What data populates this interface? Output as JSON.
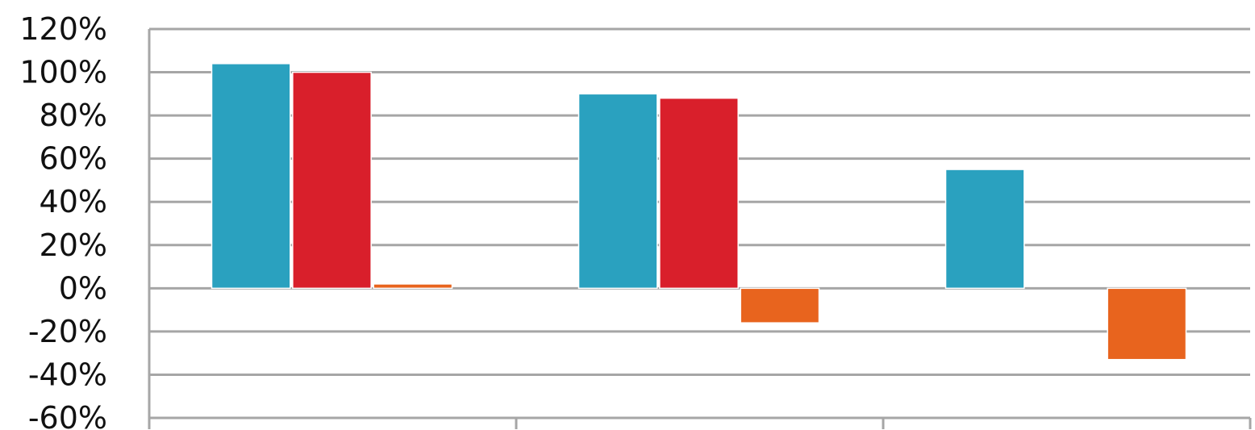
{
  "chart_data": {
    "type": "bar",
    "categories": [
      "",
      "",
      ""
    ],
    "series": [
      {
        "values": [
          104,
          90,
          55
        ],
        "color": "#2aa1bf"
      },
      {
        "values": [
          100,
          88,
          null
        ],
        "color": "#d91f2b"
      },
      {
        "values": [
          2,
          -16,
          -33
        ],
        "color": "#e8641e"
      }
    ],
    "y_ticks": [
      "120%",
      "100%",
      "80%",
      "60%",
      "40%",
      "20%",
      "0%",
      "-20%",
      "-40%",
      "-60%"
    ],
    "ylim": [
      -60,
      120
    ],
    "grid": true,
    "legend": "none",
    "title": "",
    "xlabel": "",
    "ylabel": ""
  }
}
